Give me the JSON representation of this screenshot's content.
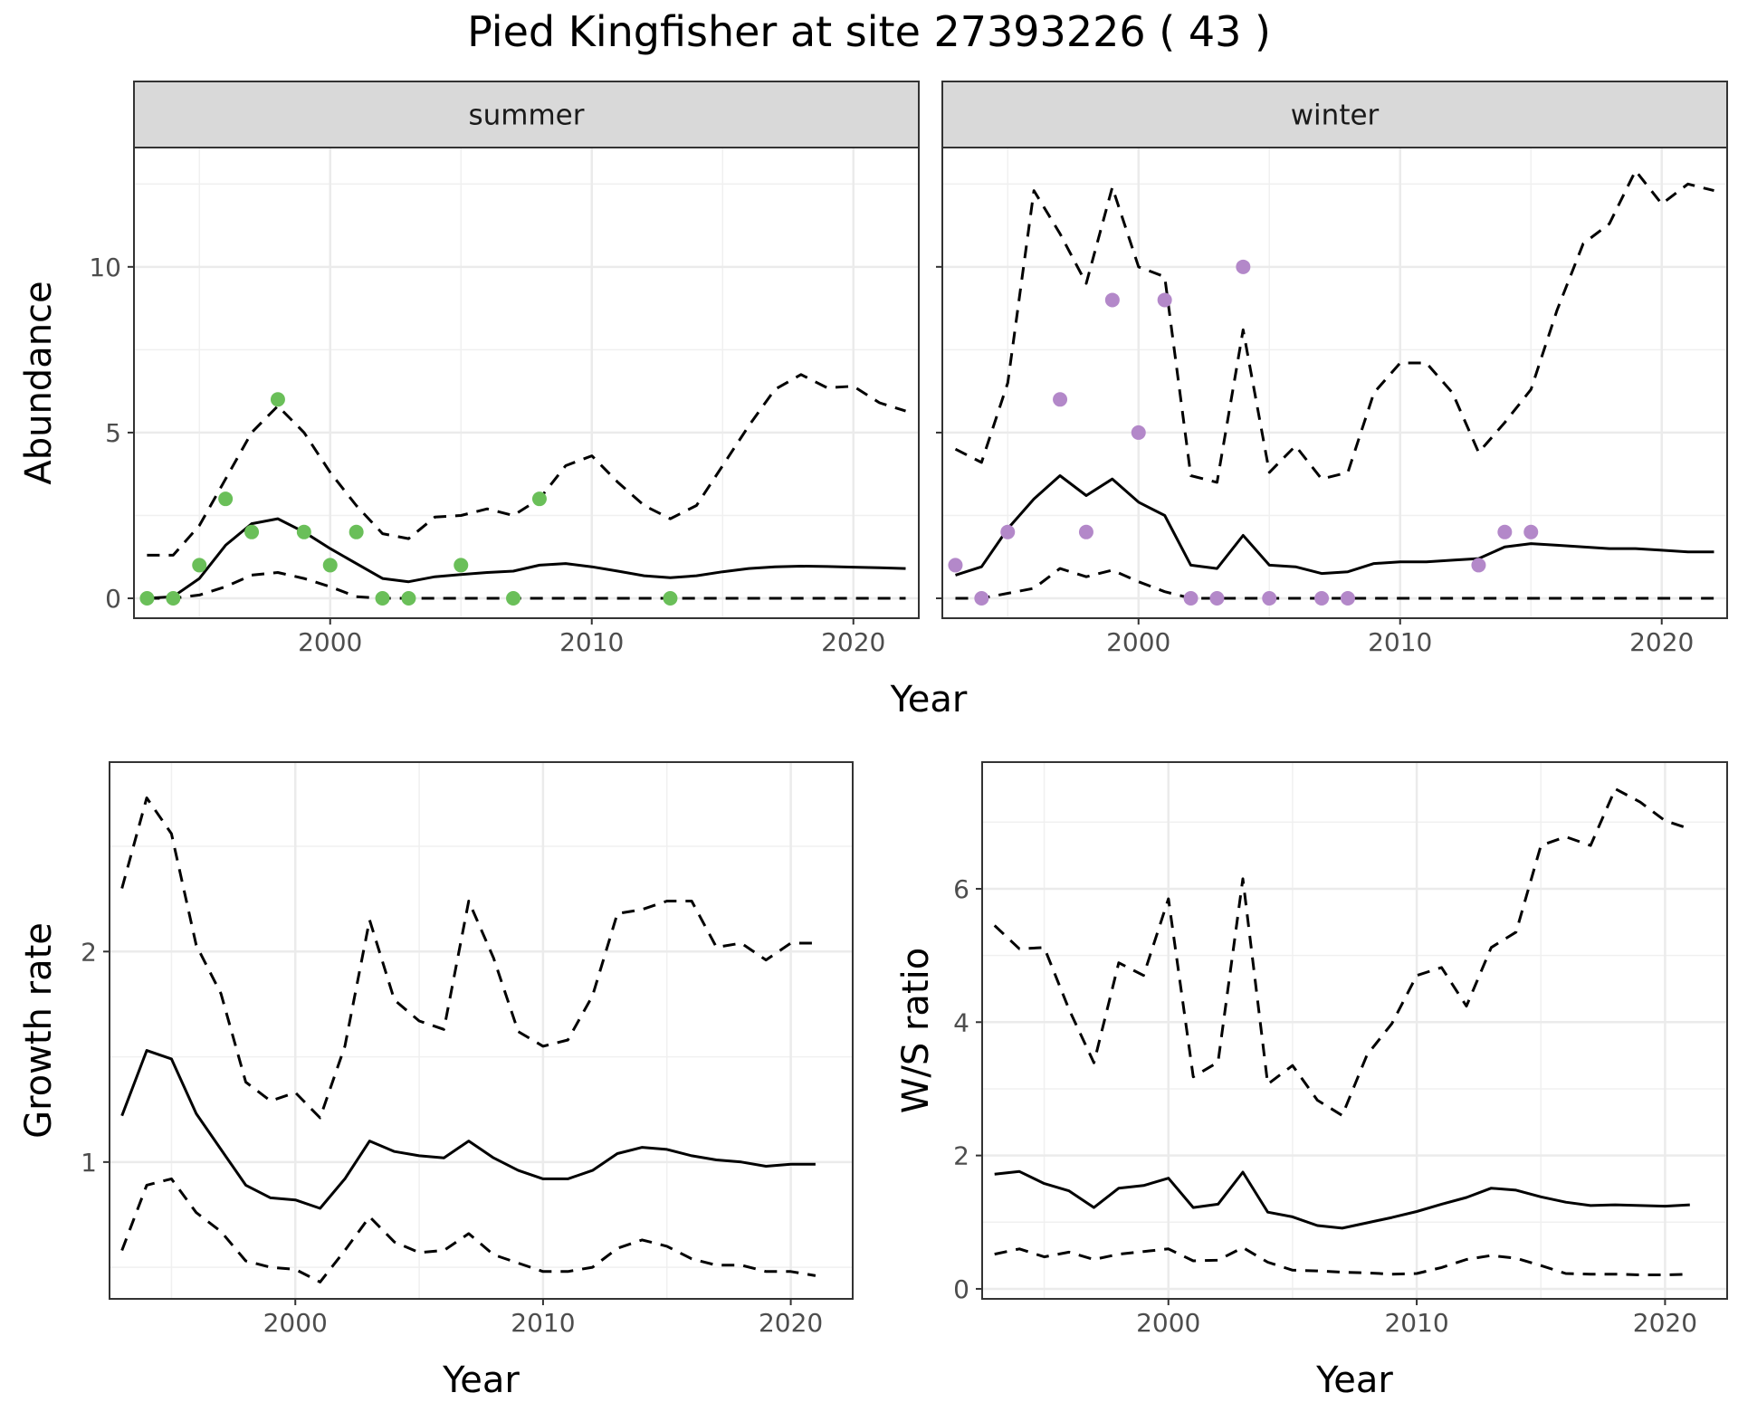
{
  "title": "Pied Kingfisher at site 27393226 ( 43 )",
  "chart_data": [
    {
      "id": "summer",
      "type": "line",
      "facet_label": "summer",
      "xlabel": "",
      "ylabel": "Abundance",
      "xlim": [
        1992.5,
        2022.5
      ],
      "ylim": [
        -0.6,
        13.6
      ],
      "xticks": [
        2000,
        2010,
        2020
      ],
      "yticks": [
        0,
        5,
        10
      ],
      "point_color": "#6abf59",
      "x": [
        1993,
        1994,
        1995,
        1996,
        1997,
        1998,
        1999,
        2000,
        2001,
        2002,
        2003,
        2004,
        2005,
        2006,
        2007,
        2008,
        2009,
        2010,
        2011,
        2012,
        2013,
        2014,
        2015,
        2016,
        2017,
        2018,
        2019,
        2020,
        2021,
        2022
      ],
      "series": [
        {
          "values": [
            0,
            0.05,
            0.6,
            1.6,
            2.25,
            2.4,
            2.0,
            1.5,
            1.05,
            0.6,
            0.5,
            0.65,
            0.72,
            0.78,
            0.82,
            1.0,
            1.05,
            0.95,
            0.82,
            0.68,
            0.62,
            0.68,
            0.8,
            0.9,
            0.95,
            0.97,
            0.96,
            0.94,
            0.92,
            0.9
          ],
          "style": "solid"
        },
        {
          "values": [
            1.3,
            1.3,
            2.2,
            3.6,
            5.0,
            5.8,
            5.0,
            3.8,
            2.8,
            1.95,
            1.8,
            2.45,
            2.5,
            2.7,
            2.5,
            3.0,
            4.0,
            4.3,
            3.5,
            2.8,
            2.4,
            2.8,
            4.0,
            5.2,
            6.3,
            6.75,
            6.35,
            6.4,
            5.9,
            5.65
          ],
          "style": "dashed"
        },
        {
          "values": [
            0,
            0,
            0.1,
            0.35,
            0.7,
            0.78,
            0.6,
            0.35,
            0.05,
            0,
            0,
            0,
            0,
            0,
            0,
            0,
            0,
            0,
            0,
            0,
            0,
            0,
            0,
            0,
            0,
            0,
            0,
            0,
            0,
            0
          ],
          "style": "dashed"
        }
      ],
      "points": [
        [
          1993,
          0
        ],
        [
          1994,
          0
        ],
        [
          1995,
          1
        ],
        [
          1996,
          3
        ],
        [
          1997,
          2
        ],
        [
          1998,
          6
        ],
        [
          1999,
          2
        ],
        [
          2000,
          1
        ],
        [
          2001,
          2
        ],
        [
          2002,
          0
        ],
        [
          2003,
          0
        ],
        [
          2005,
          1
        ],
        [
          2007,
          0
        ],
        [
          2008,
          3
        ],
        [
          2013,
          0
        ]
      ]
    },
    {
      "id": "winter",
      "type": "line",
      "facet_label": "winter",
      "xlabel": "",
      "ylabel": "",
      "xlim": [
        1992.5,
        2022.5
      ],
      "ylim": [
        -0.6,
        13.6
      ],
      "xticks": [
        2000,
        2010,
        2020
      ],
      "yticks": [
        0,
        5,
        10
      ],
      "point_color": "#b388c9",
      "x": [
        1993,
        1994,
        1995,
        1996,
        1997,
        1998,
        1999,
        2000,
        2001,
        2002,
        2003,
        2004,
        2005,
        2006,
        2007,
        2008,
        2009,
        2010,
        2011,
        2012,
        2013,
        2014,
        2015,
        2016,
        2017,
        2018,
        2019,
        2020,
        2021,
        2022
      ],
      "series": [
        {
          "values": [
            0.7,
            0.95,
            2.1,
            3.0,
            3.7,
            3.1,
            3.6,
            2.9,
            2.5,
            1.0,
            0.9,
            1.9,
            1.0,
            0.95,
            0.75,
            0.8,
            1.05,
            1.1,
            1.1,
            1.15,
            1.2,
            1.55,
            1.65,
            1.6,
            1.55,
            1.5,
            1.5,
            1.45,
            1.4,
            1.4
          ],
          "style": "solid"
        },
        {
          "values": [
            4.5,
            4.1,
            6.5,
            12.3,
            11.0,
            9.5,
            12.4,
            10.0,
            9.7,
            3.7,
            3.5,
            8.1,
            3.8,
            4.6,
            3.6,
            3.8,
            6.2,
            7.1,
            7.1,
            6.2,
            4.4,
            5.3,
            6.3,
            8.7,
            10.7,
            11.3,
            12.9,
            11.9,
            12.5,
            12.3
          ],
          "style": "dashed"
        },
        {
          "values": [
            0,
            0,
            0.15,
            0.3,
            0.9,
            0.65,
            0.85,
            0.5,
            0.2,
            0,
            0,
            0,
            0,
            0,
            0,
            0,
            0,
            0,
            0,
            0,
            0,
            0,
            0,
            0,
            0,
            0,
            0,
            0,
            0,
            0
          ],
          "style": "dashed"
        }
      ],
      "points": [
        [
          1993,
          1
        ],
        [
          1994,
          0
        ],
        [
          1995,
          2
        ],
        [
          1997,
          6
        ],
        [
          1998,
          2
        ],
        [
          1999,
          9
        ],
        [
          2000,
          5
        ],
        [
          2001,
          9
        ],
        [
          2002,
          0
        ],
        [
          2003,
          0
        ],
        [
          2004,
          10
        ],
        [
          2005,
          0
        ],
        [
          2007,
          0
        ],
        [
          2008,
          0
        ],
        [
          2013,
          1
        ],
        [
          2014,
          2
        ],
        [
          2015,
          2
        ]
      ]
    },
    {
      "id": "growth",
      "type": "line",
      "xlabel": "Year",
      "ylabel": "Growth rate",
      "xlim": [
        1992.5,
        2022.5
      ],
      "ylim": [
        0.35,
        2.9
      ],
      "xticks": [
        2000,
        2010,
        2020
      ],
      "yticks": [
        1,
        2
      ],
      "x": [
        1993,
        1994,
        1995,
        1996,
        1997,
        1998,
        1999,
        2000,
        2001,
        2002,
        2003,
        2004,
        2005,
        2006,
        2007,
        2008,
        2009,
        2010,
        2011,
        2012,
        2013,
        2014,
        2015,
        2016,
        2017,
        2018,
        2019,
        2020,
        2021
      ],
      "series": [
        {
          "values": [
            1.22,
            1.53,
            1.49,
            1.23,
            1.06,
            0.89,
            0.83,
            0.82,
            0.78,
            0.92,
            1.1,
            1.05,
            1.03,
            1.02,
            1.1,
            1.02,
            0.96,
            0.92,
            0.92,
            0.96,
            1.04,
            1.07,
            1.06,
            1.03,
            1.01,
            1.0,
            0.98,
            0.99,
            0.99
          ],
          "style": "solid"
        },
        {
          "values": [
            2.3,
            2.73,
            2.56,
            2.03,
            1.8,
            1.38,
            1.29,
            1.33,
            1.21,
            1.55,
            2.15,
            1.77,
            1.67,
            1.63,
            2.24,
            1.97,
            1.62,
            1.55,
            1.58,
            1.79,
            2.18,
            2.2,
            2.24,
            2.24,
            2.02,
            2.04,
            1.96,
            2.04,
            2.04
          ],
          "style": "dashed"
        },
        {
          "values": [
            0.58,
            0.89,
            0.92,
            0.76,
            0.67,
            0.53,
            0.5,
            0.49,
            0.43,
            0.58,
            0.74,
            0.62,
            0.57,
            0.58,
            0.66,
            0.56,
            0.52,
            0.48,
            0.48,
            0.5,
            0.59,
            0.63,
            0.6,
            0.54,
            0.51,
            0.51,
            0.48,
            0.48,
            0.46
          ],
          "style": "dashed"
        }
      ]
    },
    {
      "id": "ratio",
      "type": "line",
      "xlabel": "Year",
      "ylabel": "W/S ratio",
      "xlim": [
        1992.5,
        2022.5
      ],
      "ylim": [
        -0.15,
        7.9
      ],
      "xticks": [
        2000,
        2010,
        2020
      ],
      "yticks": [
        0,
        2,
        4,
        6
      ],
      "x": [
        1993,
        1994,
        1995,
        1996,
        1997,
        1998,
        1999,
        2000,
        2001,
        2002,
        2003,
        2004,
        2005,
        2006,
        2007,
        2008,
        2009,
        2010,
        2011,
        2012,
        2013,
        2014,
        2015,
        2016,
        2017,
        2018,
        2019,
        2020,
        2021
      ],
      "series": [
        {
          "values": [
            1.72,
            1.76,
            1.58,
            1.47,
            1.22,
            1.51,
            1.55,
            1.66,
            1.22,
            1.27,
            1.75,
            1.15,
            1.08,
            0.95,
            0.91,
            0.99,
            1.07,
            1.16,
            1.27,
            1.37,
            1.51,
            1.48,
            1.38,
            1.3,
            1.25,
            1.26,
            1.25,
            1.24,
            1.26
          ],
          "style": "solid"
        },
        {
          "values": [
            5.45,
            5.1,
            5.12,
            4.19,
            3.39,
            4.89,
            4.7,
            5.85,
            3.18,
            3.4,
            6.15,
            3.07,
            3.35,
            2.83,
            2.6,
            3.51,
            3.98,
            4.7,
            4.82,
            4.24,
            5.12,
            5.35,
            6.65,
            6.78,
            6.65,
            7.5,
            7.3,
            7.02,
            6.9
          ],
          "style": "dashed"
        },
        {
          "values": [
            0.52,
            0.6,
            0.48,
            0.55,
            0.44,
            0.52,
            0.56,
            0.6,
            0.42,
            0.43,
            0.62,
            0.4,
            0.28,
            0.27,
            0.25,
            0.24,
            0.22,
            0.23,
            0.32,
            0.44,
            0.5,
            0.46,
            0.35,
            0.23,
            0.22,
            0.22,
            0.21,
            0.21,
            0.22
          ],
          "style": "dashed"
        }
      ]
    }
  ],
  "shared_xlabel": "Year"
}
